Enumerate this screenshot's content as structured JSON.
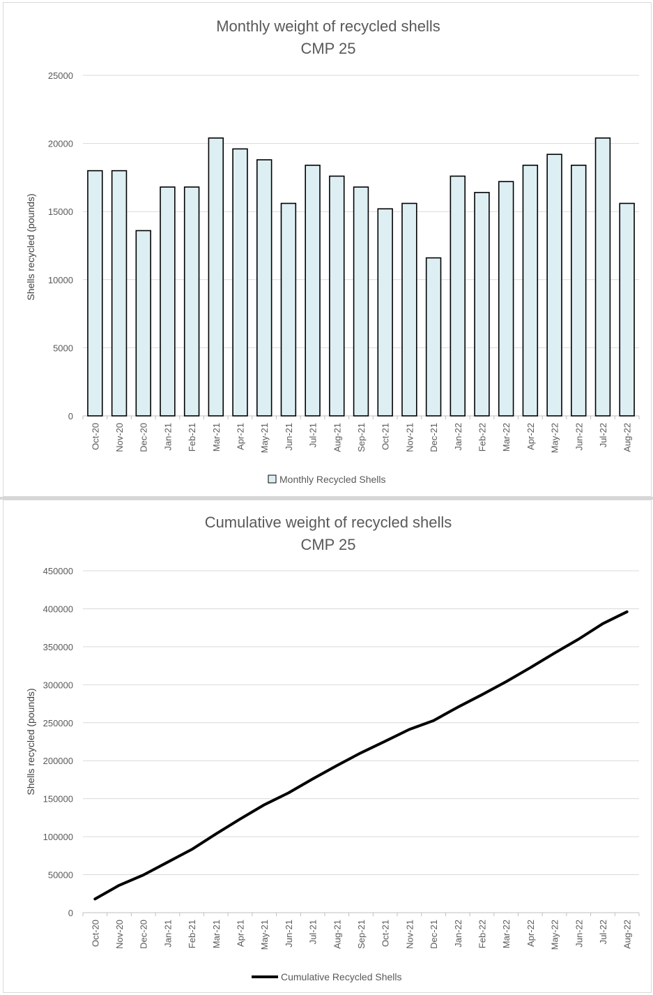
{
  "chart_data": [
    {
      "type": "bar",
      "title": "Monthly weight of recycled shells",
      "subtitle": "CMP 25",
      "xlabel": "",
      "ylabel": "Shells recycled (pounds)",
      "ylim": [
        0,
        25000
      ],
      "yticks": [
        0,
        5000,
        10000,
        15000,
        20000,
        25000
      ],
      "grid": true,
      "legend": "bottom",
      "categories": [
        "Oct-20",
        "Nov-20",
        "Dec-20",
        "Jan-21",
        "Feb-21",
        "Mar-21",
        "Apr-21",
        "May-21",
        "Jun-21",
        "Jul-21",
        "Aug-21",
        "Sep-21",
        "Oct-21",
        "Nov-21",
        "Dec-21",
        "Jan-22",
        "Feb-22",
        "Mar-22",
        "Apr-22",
        "May-22",
        "Jun-22",
        "Jul-22",
        "Aug-22"
      ],
      "series": [
        {
          "name": "Monthly Recycled Shells",
          "color": "#deeff3",
          "values": [
            18000,
            18000,
            13600,
            16800,
            16800,
            20400,
            19600,
            18800,
            15600,
            18400,
            17600,
            16800,
            15200,
            15600,
            11600,
            17600,
            16400,
            17200,
            18400,
            19200,
            18400,
            20400,
            15600
          ]
        }
      ]
    },
    {
      "type": "line",
      "title": "Cumulative weight of recycled shells",
      "subtitle": "CMP 25",
      "xlabel": "",
      "ylabel": "Shells recycled (pounds)",
      "ylim": [
        0,
        450000
      ],
      "yticks": [
        0,
        50000,
        100000,
        150000,
        200000,
        250000,
        300000,
        350000,
        400000,
        450000
      ],
      "grid": true,
      "legend": "bottom",
      "categories": [
        "Oct-20",
        "Nov-20",
        "Dec-20",
        "Jan-21",
        "Feb-21",
        "Mar-21",
        "Apr-21",
        "May-21",
        "Jun-21",
        "Jul-21",
        "Aug-21",
        "Sep-21",
        "Oct-21",
        "Nov-21",
        "Dec-21",
        "Jan-22",
        "Feb-22",
        "Mar-22",
        "Apr-22",
        "May-22",
        "Jun-22",
        "Jul-22",
        "Aug-22"
      ],
      "series": [
        {
          "name": "Cumulative Recycled Shells",
          "color": "#000000",
          "values": [
            18000,
            36000,
            49600,
            66400,
            83200,
            103600,
            123200,
            142000,
            157600,
            176000,
            193600,
            210400,
            225600,
            241200,
            252800,
            270400,
            286800,
            304000,
            322400,
            341600,
            360000,
            380400,
            396000
          ]
        }
      ]
    }
  ]
}
